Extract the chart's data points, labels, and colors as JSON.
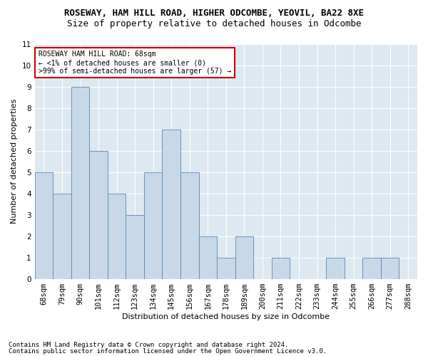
{
  "title": "ROSEWAY, HAM HILL ROAD, HIGHER ODCOMBE, YEOVIL, BA22 8XE",
  "subtitle": "Size of property relative to detached houses in Odcombe",
  "xlabel": "Distribution of detached houses by size in Odcombe",
  "ylabel": "Number of detached properties",
  "categories": [
    "68sqm",
    "79sqm",
    "90sqm",
    "101sqm",
    "112sqm",
    "123sqm",
    "134sqm",
    "145sqm",
    "156sqm",
    "167sqm",
    "178sqm",
    "189sqm",
    "200sqm",
    "211sqm",
    "222sqm",
    "233sqm",
    "244sqm",
    "255sqm",
    "266sqm",
    "277sqm",
    "288sqm"
  ],
  "values": [
    5,
    4,
    9,
    6,
    4,
    3,
    5,
    7,
    5,
    2,
    1,
    2,
    0,
    1,
    0,
    0,
    1,
    0,
    1,
    1,
    0
  ],
  "bar_color": "#c8d8e8",
  "bar_edge_color": "#5588bb",
  "background_color": "#ffffff",
  "plot_bg_color": "#dde8f0",
  "grid_color": "#ffffff",
  "ylim": [
    0,
    11
  ],
  "yticks": [
    0,
    1,
    2,
    3,
    4,
    5,
    6,
    7,
    8,
    9,
    10,
    11
  ],
  "annotation_box_text": "ROSEWAY HAM HILL ROAD: 68sqm\n← <1% of detached houses are smaller (0)\n>99% of semi-detached houses are larger (57) →",
  "annotation_box_color": "#cc0000",
  "footer_line1": "Contains HM Land Registry data © Crown copyright and database right 2024.",
  "footer_line2": "Contains public sector information licensed under the Open Government Licence v3.0.",
  "title_fontsize": 9,
  "subtitle_fontsize": 9,
  "axis_label_fontsize": 8,
  "tick_fontsize": 7.5,
  "annotation_fontsize": 7,
  "footer_fontsize": 6.5
}
